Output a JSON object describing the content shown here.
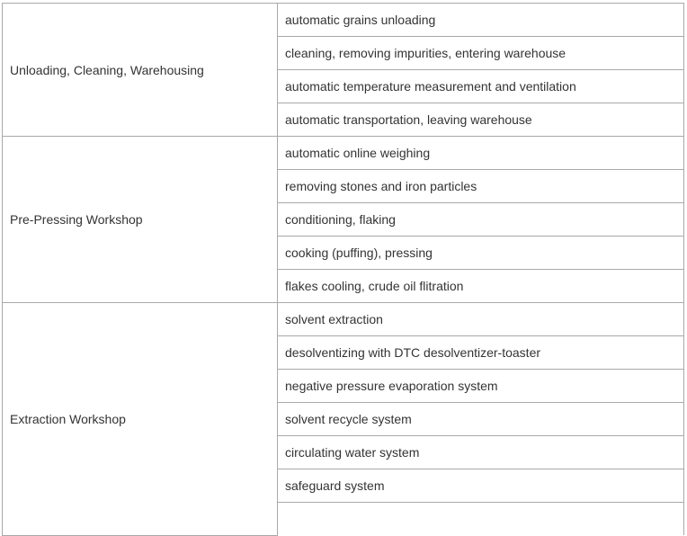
{
  "sections": [
    {
      "name": "Unloading, Cleaning, Warehousing",
      "steps": [
        "automatic grains unloading",
        "cleaning, removing impurities, entering warehouse",
        "automatic temperature measurement and ventilation",
        "automatic transportation, leaving warehouse"
      ]
    },
    {
      "name": "Pre-Pressing Workshop",
      "steps": [
        "automatic online weighing",
        "removing stones and iron particles",
        "conditioning, flaking",
        "cooking (puffing), pressing",
        "flakes cooling, crude oil flitration"
      ]
    },
    {
      "name": "Extraction Workshop",
      "steps": [
        "solvent extraction",
        "desolventizing with DTC desolventizer-toaster",
        "negative pressure evaporation system",
        "solvent recycle system",
        "circulating water system",
        "safeguard system"
      ]
    }
  ]
}
